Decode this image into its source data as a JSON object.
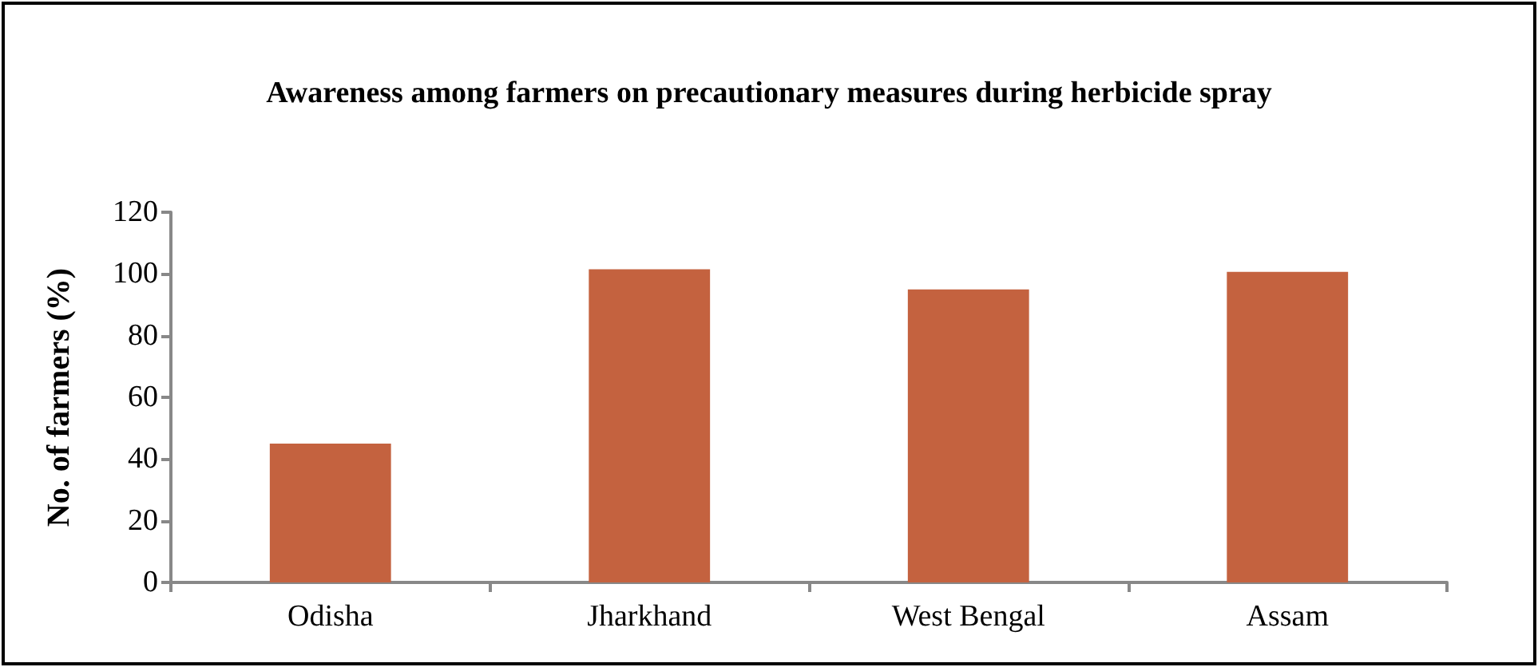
{
  "chart_data": {
    "type": "bar",
    "title": "Awareness among farmers on precautionary measures during herbicide spray",
    "ylabel": "No. of farmers (%)",
    "categories": [
      "Odisha",
      "Jharkhand",
      "West Bengal",
      "Assam"
    ],
    "values": [
      45,
      101.5,
      95,
      100.7
    ],
    "color": "#c4623f",
    "ylim": [
      0,
      120
    ],
    "yticks": [
      0,
      20,
      40,
      60,
      80,
      100,
      120
    ],
    "grid": false
  }
}
